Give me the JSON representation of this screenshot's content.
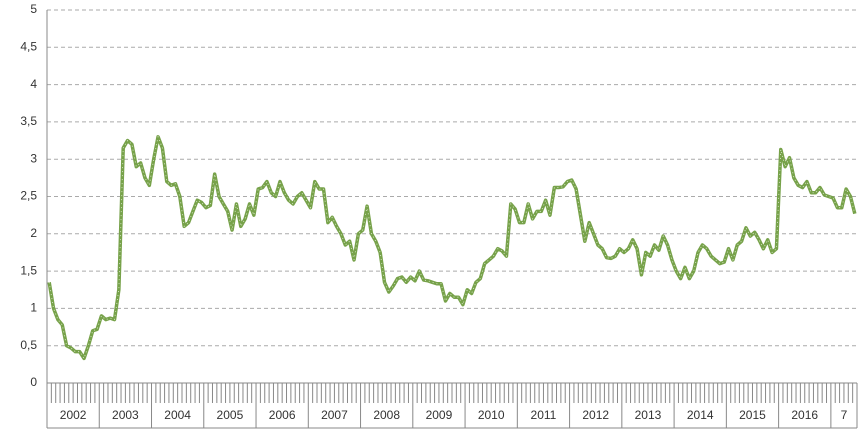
{
  "chart_data": {
    "type": "line",
    "categories": [
      "2002",
      null,
      null,
      null,
      null,
      null,
      null,
      null,
      null,
      null,
      null,
      null,
      "2003",
      null,
      null,
      null,
      null,
      null,
      null,
      null,
      null,
      null,
      null,
      null,
      "2004",
      null,
      null,
      null,
      null,
      null,
      null,
      null,
      null,
      null,
      null,
      null,
      "2005",
      null,
      null,
      null,
      null,
      null,
      null,
      null,
      null,
      null,
      null,
      null,
      "2006",
      null,
      null,
      null,
      null,
      null,
      null,
      null,
      null,
      null,
      null,
      null,
      "2007",
      null,
      null,
      null,
      null,
      null,
      null,
      null,
      null,
      null,
      null,
      null,
      "2008",
      null,
      null,
      null,
      null,
      null,
      null,
      null,
      null,
      null,
      null,
      null,
      "2009",
      null,
      null,
      null,
      null,
      null,
      null,
      null,
      null,
      null,
      null,
      null,
      "2010",
      null,
      null,
      null,
      null,
      null,
      null,
      null,
      null,
      null,
      null,
      null,
      "2011",
      null,
      null,
      null,
      null,
      null,
      null,
      null,
      null,
      null,
      null,
      null,
      "2012",
      null,
      null,
      null,
      null,
      null,
      null,
      null,
      null,
      null,
      null,
      null,
      "2013",
      null,
      null,
      null,
      null,
      null,
      null,
      null,
      null,
      null,
      null,
      null,
      "2014",
      null,
      null,
      null,
      null,
      null,
      null,
      null,
      null,
      null,
      null,
      null,
      "2015",
      null,
      null,
      null,
      null,
      null,
      null,
      null,
      null,
      null,
      null,
      null,
      "2016",
      null,
      null,
      null,
      null,
      null,
      null,
      null,
      null,
      null,
      null,
      null,
      "7",
      null,
      null,
      null,
      null,
      null
    ],
    "values": [
      1.35,
      1.0,
      0.85,
      0.78,
      0.5,
      0.47,
      0.42,
      0.42,
      0.33,
      0.5,
      0.7,
      0.72,
      0.9,
      0.85,
      0.87,
      0.85,
      1.25,
      3.15,
      3.25,
      3.2,
      2.9,
      2.95,
      2.75,
      2.65,
      3.0,
      3.3,
      3.15,
      2.7,
      2.65,
      2.67,
      2.5,
      2.1,
      2.15,
      2.3,
      2.45,
      2.42,
      2.35,
      2.38,
      2.8,
      2.5,
      2.4,
      2.3,
      2.05,
      2.4,
      2.1,
      2.2,
      2.4,
      2.25,
      2.6,
      2.62,
      2.7,
      2.55,
      2.5,
      2.7,
      2.55,
      2.45,
      2.4,
      2.5,
      2.55,
      2.45,
      2.35,
      2.7,
      2.6,
      2.6,
      2.15,
      2.22,
      2.1,
      2.0,
      1.85,
      1.9,
      1.65,
      2.0,
      2.05,
      2.37,
      2.0,
      1.9,
      1.75,
      1.35,
      1.22,
      1.3,
      1.4,
      1.42,
      1.35,
      1.42,
      1.37,
      1.5,
      1.38,
      1.37,
      1.35,
      1.33,
      1.33,
      1.1,
      1.2,
      1.15,
      1.15,
      1.05,
      1.25,
      1.2,
      1.35,
      1.4,
      1.6,
      1.65,
      1.7,
      1.8,
      1.77,
      1.7,
      2.4,
      2.33,
      2.15,
      2.15,
      2.4,
      2.2,
      2.3,
      2.3,
      2.45,
      2.25,
      2.62,
      2.62,
      2.63,
      2.7,
      2.72,
      2.6,
      2.25,
      1.9,
      2.15,
      2.0,
      1.85,
      1.8,
      1.68,
      1.67,
      1.7,
      1.8,
      1.75,
      1.8,
      1.92,
      1.8,
      1.45,
      1.75,
      1.7,
      1.85,
      1.78,
      1.97,
      1.85,
      1.65,
      1.5,
      1.4,
      1.55,
      1.4,
      1.5,
      1.75,
      1.85,
      1.8,
      1.7,
      1.65,
      1.6,
      1.62,
      1.8,
      1.65,
      1.85,
      1.9,
      2.08,
      1.97,
      2.02,
      1.92,
      1.8,
      1.92,
      1.75,
      1.8,
      3.13,
      2.9,
      3.02,
      2.75,
      2.65,
      2.62,
      2.7,
      2.55,
      2.55,
      2.62,
      2.52,
      2.5,
      2.48,
      2.35,
      2.35,
      2.6,
      2.5,
      2.27
    ],
    "color": "#77a24a",
    "ylim": [
      0,
      5
    ],
    "yticks": [
      0,
      {
        "value": 0.5,
        "label": "0,5"
      },
      1,
      {
        "value": 1.5,
        "label": "1,5"
      },
      2,
      {
        "value": 2.5,
        "label": "2,5"
      },
      3,
      {
        "value": 3.5,
        "label": "3,5"
      },
      4,
      {
        "value": 4.5,
        "label": "4,5"
      },
      5
    ],
    "grid": true
  }
}
